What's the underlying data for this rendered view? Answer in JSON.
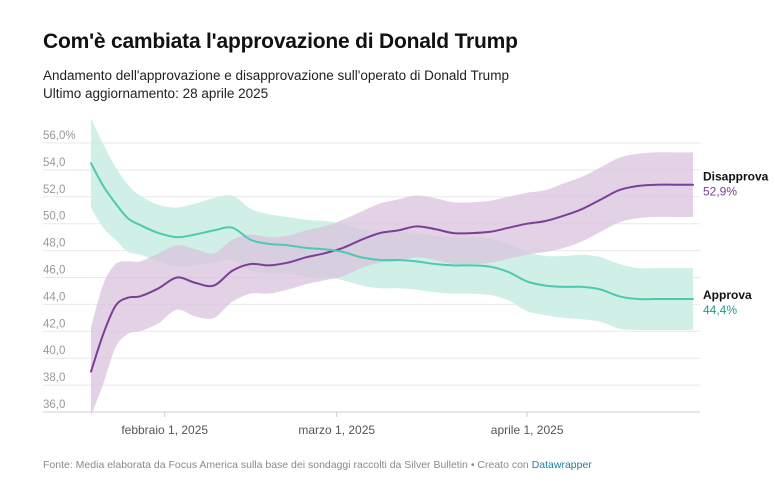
{
  "title": "Com'è cambiata l'approvazione di Donald Trump",
  "subtitle_line1": "Andamento dell'approvazione e disapprovazione sull'operato di Donald Trump",
  "subtitle_line2": "Ultimo aggiornamento: 28 aprile 2025",
  "footer": {
    "text": "Fonte: Media elaborata da Focus America sulla base dei sondaggi raccolti da Silver Bulletin • Creato con ",
    "link": "Datawrapper"
  },
  "colors": {
    "approve_line": "#4ec9b0",
    "approve_band": "#cdeee6",
    "disapprove_line": "#7b3f98",
    "disapprove_band": "#d9c3de",
    "approve_text": "#1a9e85",
    "disapprove_text": "#7b3f98"
  },
  "chart_data": {
    "type": "line",
    "ylim": [
      36,
      56
    ],
    "y_ticks": [
      "56,0%",
      "54,0",
      "52,0",
      "50,0",
      "48,0",
      "46,0",
      "44,0",
      "42,0",
      "40,0",
      "38,0",
      "36,0"
    ],
    "x_ticks": [
      {
        "label": "febbraio 1, 2025",
        "date": "2025-02-01"
      },
      {
        "label": "marzo 1, 2025",
        "date": "2025-03-01"
      },
      {
        "label": "aprile 1, 2025",
        "date": "2025-04-01"
      }
    ],
    "x": [
      "2025-01-20",
      "2025-01-22",
      "2025-01-24",
      "2025-01-26",
      "2025-01-28",
      "2025-01-31",
      "2025-02-03",
      "2025-02-06",
      "2025-02-09",
      "2025-02-12",
      "2025-02-15",
      "2025-02-18",
      "2025-02-21",
      "2025-02-24",
      "2025-02-27",
      "2025-03-02",
      "2025-03-05",
      "2025-03-08",
      "2025-03-11",
      "2025-03-14",
      "2025-03-17",
      "2025-03-20",
      "2025-03-23",
      "2025-03-26",
      "2025-03-29",
      "2025-04-01",
      "2025-04-04",
      "2025-04-07",
      "2025-04-10",
      "2025-04-13",
      "2025-04-16",
      "2025-04-19",
      "2025-04-22",
      "2025-04-25",
      "2025-04-28"
    ],
    "series": [
      {
        "name": "Disapprova",
        "end_label": "52,9%",
        "values": [
          39.0,
          41.8,
          43.9,
          44.5,
          44.6,
          45.2,
          46.0,
          45.6,
          45.4,
          46.5,
          47.0,
          46.9,
          47.1,
          47.5,
          47.8,
          48.2,
          48.8,
          49.3,
          49.5,
          49.8,
          49.6,
          49.3,
          49.3,
          49.4,
          49.7,
          50.0,
          50.2,
          50.6,
          51.1,
          51.8,
          52.5,
          52.8,
          52.9,
          52.9,
          52.9
        ],
        "upper": [
          42.3,
          45.5,
          47.0,
          47.2,
          47.2,
          47.8,
          48.4,
          48.1,
          47.8,
          48.8,
          49.2,
          49.0,
          49.1,
          49.5,
          49.8,
          50.3,
          50.9,
          51.5,
          51.8,
          52.1,
          51.9,
          51.6,
          51.6,
          51.7,
          52.0,
          52.3,
          52.5,
          53.0,
          53.5,
          54.2,
          54.9,
          55.2,
          55.3,
          55.3,
          55.3
        ],
        "lower": [
          35.7,
          38.1,
          40.8,
          41.8,
          42.0,
          42.6,
          43.6,
          43.1,
          43.0,
          44.2,
          44.8,
          44.8,
          45.1,
          45.5,
          45.8,
          46.1,
          46.7,
          47.1,
          47.2,
          47.5,
          47.3,
          47.0,
          47.0,
          47.1,
          47.4,
          47.7,
          47.9,
          48.2,
          48.7,
          49.4,
          50.1,
          50.4,
          50.5,
          50.5,
          50.5
        ]
      },
      {
        "name": "Approva",
        "end_label": "44,4%",
        "values": [
          54.5,
          52.8,
          51.5,
          50.4,
          49.9,
          49.3,
          49.0,
          49.2,
          49.5,
          49.7,
          48.8,
          48.5,
          48.4,
          48.2,
          48.1,
          47.9,
          47.5,
          47.3,
          47.3,
          47.2,
          47.0,
          46.9,
          46.9,
          46.8,
          46.4,
          45.7,
          45.4,
          45.3,
          45.3,
          45.1,
          44.6,
          44.4,
          44.4,
          44.4,
          44.4
        ],
        "upper": [
          57.8,
          55.9,
          54.2,
          52.9,
          52.1,
          51.4,
          51.2,
          51.5,
          51.9,
          52.1,
          51.1,
          50.7,
          50.5,
          50.3,
          50.2,
          50.0,
          49.6,
          49.4,
          49.4,
          49.3,
          49.1,
          49.0,
          49.0,
          48.9,
          48.5,
          47.9,
          47.6,
          47.6,
          47.7,
          47.5,
          47.0,
          46.7,
          46.7,
          46.7,
          46.7
        ],
        "lower": [
          51.2,
          49.7,
          48.8,
          47.9,
          47.7,
          47.2,
          46.8,
          46.9,
          47.1,
          47.3,
          46.5,
          46.3,
          46.3,
          46.1,
          46.0,
          45.8,
          45.4,
          45.2,
          45.2,
          45.1,
          44.9,
          44.8,
          44.8,
          44.7,
          44.3,
          43.5,
          43.2,
          43.0,
          42.9,
          42.7,
          42.2,
          42.1,
          42.1,
          42.1,
          42.1
        ]
      }
    ]
  }
}
